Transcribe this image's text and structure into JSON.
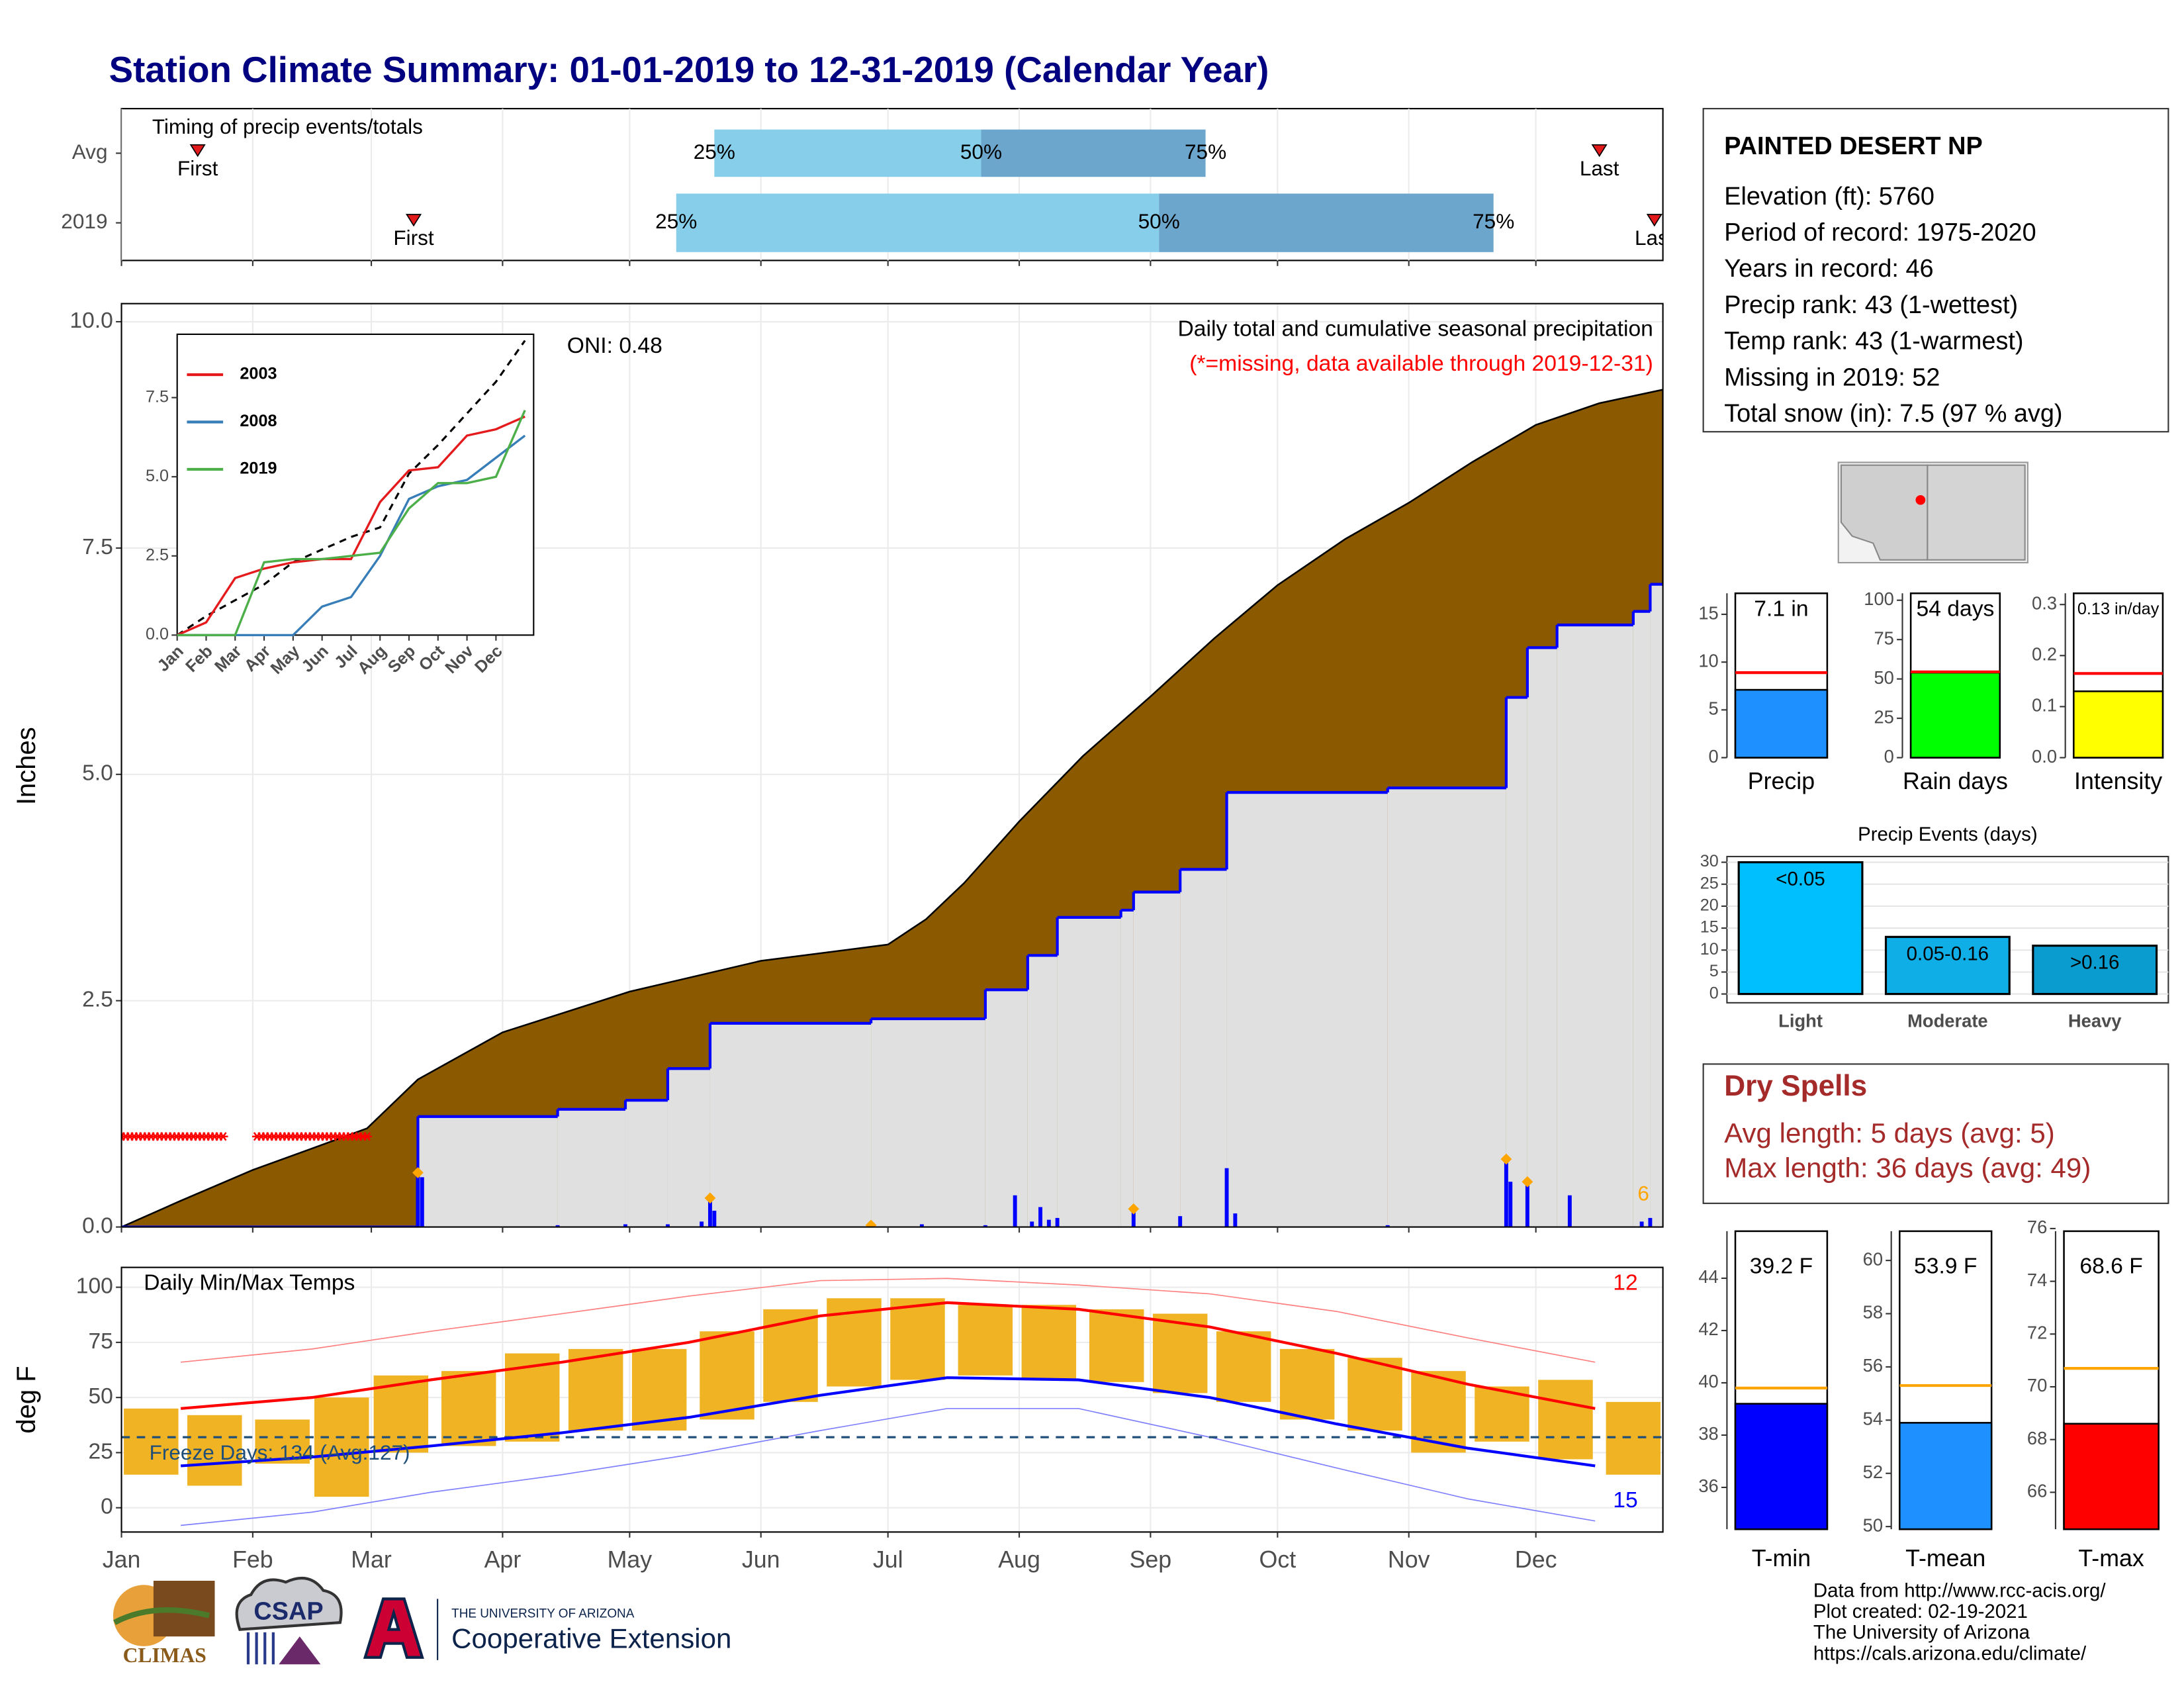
{
  "title": "Station Climate Summary: 01-01-2019 to 12-31-2019 (Calendar Year)",
  "info": {
    "name": "PAINTED DESERT NP",
    "lines": [
      "Elevation (ft): 5760",
      "Period of record: 1975-2020",
      "Years in record: 46",
      "Precip rank: 43 (1-wettest)",
      "Temp rank: 43 (1-warmest)",
      "Missing in 2019: 52",
      "Total snow (in): 7.5 (97 % avg)"
    ]
  },
  "dry_spells": {
    "title": "Dry Spells",
    "lines": [
      "Avg length: 5 days (avg: 5)",
      "Max length: 36 days (avg: 49)"
    ]
  },
  "footer": {
    "lines": [
      "Data from http://www.rcc-acis.org/",
      "Plot created: 02-19-2021",
      "The University of Arizona",
      "https://cals.arizona.edu/climate/"
    ]
  },
  "logos": {
    "climas": "CLIMAS",
    "csap": "CSAP",
    "university": "THE UNIVERSITY OF ARIZONA",
    "extension": "Cooperative Extension"
  },
  "chart_data": [
    {
      "type": "timing",
      "title": "Timing of precip events/totals",
      "xlim": [
        1,
        365
      ],
      "xticks": [
        1,
        32,
        60,
        91,
        121,
        152,
        182,
        213,
        244,
        274,
        305,
        335
      ],
      "first_label": "First",
      "last_label": "Last",
      "p25_label": "25%",
      "p50_label": "50%",
      "p75_label": "75%",
      "colors": {
        "lower": "#87ceeb",
        "upper": "#6ca6cd",
        "marker": "#e31a1c"
      },
      "rows": [
        {
          "name": "Avg",
          "first": 19,
          "p25": 141,
          "p50": 204,
          "p75": 257,
          "last": 350
        },
        {
          "name": "2019",
          "first": 70,
          "p25": 132,
          "p50": 246,
          "p75": 325,
          "last": 363
        }
      ]
    },
    {
      "type": "area",
      "title": "Daily total and cumulative seasonal precipitation",
      "subtitle": "(*=missing, data available through 2019-12-31)",
      "annotation": "ONI: 0.48",
      "y_label": "Inches",
      "count_label": 6,
      "xlim": [
        1,
        365
      ],
      "ylim": [
        0,
        10.2
      ],
      "xticks": [
        1,
        32,
        60,
        91,
        121,
        152,
        182,
        213,
        244,
        274,
        305,
        335
      ],
      "yticks": [
        {
          "value": 0,
          "label": "0.0"
        },
        2.5,
        {
          "value": 5,
          "label": "5.0"
        },
        7.5,
        {
          "value": 10,
          "label": "10.0"
        }
      ],
      "average_cumulative": {
        "color": "#8b5a00",
        "x": [
          1,
          15,
          32,
          45,
          59,
          71,
          91,
          121,
          152,
          182,
          191,
          200,
          213,
          228,
          244,
          259,
          274,
          290,
          305,
          320,
          335,
          350,
          365
        ],
        "values": [
          0,
          0.29,
          0.63,
          0.85,
          1.09,
          1.63,
          2.15,
          2.6,
          2.94,
          3.12,
          3.4,
          3.8,
          4.48,
          5.2,
          5.86,
          6.5,
          7.09,
          7.6,
          8.0,
          8.45,
          8.86,
          9.1,
          9.25
        ]
      },
      "cumulative_2019": {
        "color": "#0000ff",
        "fill": "#e0e0e0",
        "x": [
          1,
          71,
          104,
          120,
          130,
          140,
          178,
          205,
          215,
          222,
          237,
          240,
          251,
          262,
          300,
          328,
          333,
          340,
          358,
          362,
          365
        ],
        "values": [
          0,
          1.22,
          1.3,
          1.4,
          1.75,
          2.25,
          2.3,
          2.62,
          3.0,
          3.42,
          3.5,
          3.7,
          3.95,
          4.8,
          4.85,
          5.85,
          6.4,
          6.65,
          6.8,
          7.1,
          7.1
        ]
      },
      "daily": {
        "color": "#0000ff",
        "x": [
          71,
          72,
          104,
          120,
          130,
          138,
          140,
          141,
          178,
          190,
          205,
          212,
          216,
          218,
          220,
          222,
          240,
          251,
          262,
          264,
          300,
          328,
          329,
          333,
          343,
          360,
          362
        ],
        "values": [
          0.6,
          0.55,
          0.02,
          0.03,
          0.03,
          0.06,
          0.32,
          0.18,
          0.02,
          0.03,
          0.02,
          0.35,
          0.06,
          0.22,
          0.08,
          0.1,
          0.2,
          0.12,
          0.65,
          0.15,
          0.02,
          0.75,
          0.5,
          0.5,
          0.35,
          0.06,
          0.1
        ]
      },
      "markers": {
        "color": "#ffa500",
        "x": [
          71,
          140,
          178,
          240,
          328,
          333
        ],
        "values": [
          0.6,
          0.32,
          0.02,
          0.2,
          0.75,
          0.5
        ]
      },
      "missing": {
        "color": "#ff0000",
        "days": [
          1,
          2,
          3,
          4,
          5,
          6,
          7,
          8,
          9,
          10,
          11,
          12,
          13,
          14,
          15,
          16,
          17,
          18,
          19,
          20,
          21,
          22,
          23,
          24,
          25,
          33,
          34,
          35,
          36,
          37,
          38,
          39,
          40,
          41,
          42,
          43,
          44,
          45,
          46,
          47,
          48,
          49,
          50,
          51,
          52,
          53,
          54,
          55,
          56,
          57,
          58,
          59
        ]
      }
    },
    {
      "type": "line",
      "xlim": [
        0,
        12.3
      ],
      "ylim": [
        0,
        9.5
      ],
      "xticks": [
        {
          "value": 0,
          "label": "Jan"
        },
        {
          "value": 1,
          "label": "Feb"
        },
        {
          "value": 2,
          "label": "Mar"
        },
        {
          "value": 3,
          "label": "Apr"
        },
        {
          "value": 4,
          "label": "May"
        },
        {
          "value": 5,
          "label": "Jun"
        },
        {
          "value": 6,
          "label": "Jul"
        },
        {
          "value": 7,
          "label": "Aug"
        },
        {
          "value": 8,
          "label": "Sep"
        },
        {
          "value": 9,
          "label": "Oct"
        },
        {
          "value": 10,
          "label": "Nov"
        },
        {
          "value": 11,
          "label": "Dec"
        }
      ],
      "yticks": [
        {
          "value": 0,
          "label": "0.0"
        },
        2.5,
        {
          "value": 5,
          "label": "5.0"
        },
        7.5
      ],
      "x": [
        0,
        1,
        2,
        3,
        4,
        5,
        6,
        7,
        8,
        9,
        10,
        11,
        12
      ],
      "average": {
        "color": "#000000",
        "values": [
          0,
          0.6,
          1.1,
          1.6,
          2.3,
          2.7,
          3.1,
          3.4,
          5.1,
          6.0,
          7.0,
          8.0,
          9.3
        ]
      },
      "series": [
        {
          "name": "2003",
          "color": "#e41a1c",
          "values": [
            0,
            0.4,
            1.8,
            2.1,
            2.3,
            2.4,
            2.4,
            4.2,
            5.2,
            5.3,
            6.3,
            6.5,
            6.9
          ]
        },
        {
          "name": "2008",
          "color": "#377eb8",
          "values": [
            0,
            0,
            0,
            0,
            0,
            0.9,
            1.2,
            2.5,
            4.3,
            4.7,
            4.9,
            5.6,
            6.3
          ]
        },
        {
          "name": "2019",
          "color": "#4daf4a",
          "values": [
            0,
            0,
            0,
            2.3,
            2.4,
            2.4,
            2.5,
            2.6,
            4.0,
            4.8,
            4.8,
            5.0,
            7.1
          ]
        }
      ]
    },
    {
      "type": "temperature",
      "title": "Daily Min/Max Temps",
      "y_label": "deg F",
      "freeze_label": "Freeze Days: 134 (Avg:127)",
      "freeze_line": 32,
      "record_high_count": 12,
      "record_low_count": 15,
      "xlim": [
        1,
        365
      ],
      "ylim": [
        -11,
        109
      ],
      "xticks": [
        {
          "value": 1,
          "label": "Jan"
        },
        {
          "value": 32,
          "label": "Feb"
        },
        {
          "value": 60,
          "label": "Mar"
        },
        {
          "value": 91,
          "label": "Apr"
        },
        {
          "value": 121,
          "label": "May"
        },
        {
          "value": 152,
          "label": "Jun"
        },
        {
          "value": 182,
          "label": "Jul"
        },
        {
          "value": 213,
          "label": "Aug"
        },
        {
          "value": 244,
          "label": "Sep"
        },
        {
          "value": 274,
          "label": "Oct"
        },
        {
          "value": 305,
          "label": "Nov"
        },
        {
          "value": 335,
          "label": "Dec"
        }
      ],
      "yticks": [
        0,
        25,
        50,
        75,
        100
      ],
      "normals_x": [
        15,
        46,
        74,
        105,
        135,
        166,
        196,
        227,
        258,
        288,
        319,
        349
      ],
      "max_normal": [
        45,
        50,
        58,
        66,
        75,
        87,
        93,
        90,
        82,
        70,
        56,
        45
      ],
      "min_normal": [
        19,
        23,
        28,
        34,
        41,
        51,
        59,
        58,
        50,
        38,
        27,
        19
      ],
      "record_max": [
        66,
        72,
        80,
        88,
        96,
        103,
        104,
        101,
        97,
        89,
        77,
        66
      ],
      "record_min": [
        -8,
        -2,
        7,
        15,
        24,
        35,
        45,
        45,
        32,
        18,
        4,
        -6
      ],
      "obs_x": [
        8,
        23,
        39,
        53,
        67,
        83,
        98,
        113,
        128,
        144,
        159,
        174,
        189,
        205,
        220,
        236,
        251,
        266,
        281,
        297,
        312,
        327,
        342,
        358
      ],
      "obs_min": [
        15,
        10,
        20,
        5,
        25,
        28,
        30,
        35,
        35,
        40,
        48,
        55,
        58,
        60,
        58,
        57,
        52,
        48,
        40,
        35,
        25,
        30,
        22,
        15
      ],
      "obs_max": [
        45,
        42,
        40,
        50,
        60,
        62,
        70,
        72,
        72,
        80,
        90,
        95,
        95,
        92,
        92,
        90,
        88,
        80,
        72,
        68,
        62,
        55,
        58,
        48
      ],
      "colors": {
        "obs": "#f0b323",
        "max": "#ff0000",
        "min": "#0000ff",
        "record_max": "#ff8080",
        "record_min": "#8080ff",
        "freeze": "#1f4e79"
      }
    },
    {
      "type": "bar",
      "categories": [
        "Precip"
      ],
      "values": [
        7.1
      ],
      "value_labels": [
        "7.1 in"
      ],
      "average": 8.9,
      "color": "#1e90ff",
      "average_color": "#ff0000",
      "ylim": [
        0,
        17.2
      ],
      "yticks": [
        0,
        5,
        10,
        15
      ]
    },
    {
      "type": "bar",
      "categories": [
        "Rain days"
      ],
      "values": [
        54
      ],
      "value_labels": [
        "54 days"
      ],
      "average": 54.5,
      "color": "#00ff00",
      "average_color": "#ff0000",
      "ylim": [
        0,
        104.4
      ],
      "yticks": [
        0,
        25,
        50,
        75,
        100
      ]
    },
    {
      "type": "bar",
      "categories": [
        "Intensity"
      ],
      "values": [
        0.13
      ],
      "value_labels": [
        "0.13 in/day"
      ],
      "average": 0.165,
      "color": "#ffff00",
      "average_color": "#ff0000",
      "ylim": [
        0,
        0.322
      ],
      "yticks": [
        {
          "value": 0,
          "label": "0.0"
        },
        0.1,
        0.2,
        0.3
      ]
    },
    {
      "type": "bar",
      "title": "Precip Events (days)",
      "categories": [
        "Light",
        "Moderate",
        "Heavy"
      ],
      "values": [
        30,
        13,
        11
      ],
      "thresholds": [
        "<0.05",
        "0.05-0.16",
        ">0.16"
      ],
      "colors": [
        "#00bfff",
        "#10aee6",
        "#0a9ccf"
      ],
      "ylim": [
        -2,
        31.3
      ],
      "yticks": [
        0,
        5,
        10,
        15,
        20,
        25,
        30
      ],
      "grid": true
    },
    {
      "type": "bar",
      "categories": [
        "T-min"
      ],
      "values": [
        39.2
      ],
      "value_labels": [
        "39.2 F"
      ],
      "average": 39.8,
      "color": "#0000ff",
      "average_color": "#ffa500",
      "ylim": [
        34.4,
        45.8
      ],
      "yticks": [
        36,
        38,
        40,
        42,
        44
      ]
    },
    {
      "type": "bar",
      "categories": [
        "T-mean"
      ],
      "values": [
        53.9
      ],
      "value_labels": [
        "53.9 F"
      ],
      "average": 55.3,
      "color": "#1e90ff",
      "average_color": "#ffa500",
      "ylim": [
        49.9,
        61.1
      ],
      "yticks": [
        50,
        52,
        54,
        56,
        58,
        60
      ]
    },
    {
      "type": "bar",
      "categories": [
        "T-max"
      ],
      "values": [
        68.6
      ],
      "value_labels": [
        "68.6 F"
      ],
      "average": 70.7,
      "color": "#ff0000",
      "average_color": "#ffa500",
      "ylim": [
        64.6,
        75.9
      ],
      "yticks": [
        66,
        68,
        70,
        72,
        74,
        76
      ]
    }
  ]
}
